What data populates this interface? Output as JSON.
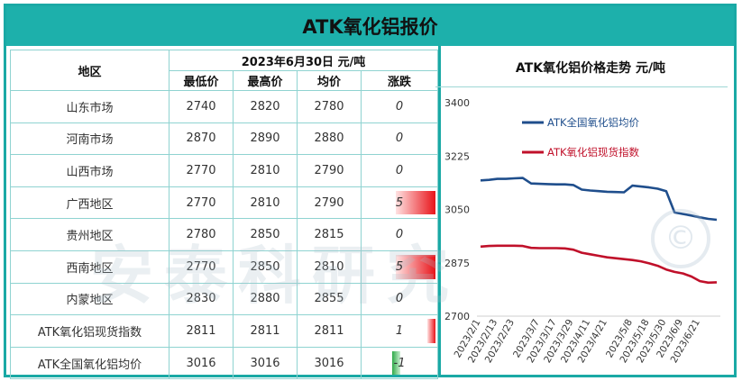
{
  "title": "ATK氧化铝报价",
  "table": {
    "region_header": "地区",
    "date_header": "2023年6月30日  元/吨",
    "columns": [
      "最低价",
      "最高价",
      "均价",
      "涨跌"
    ],
    "rows": [
      {
        "region": "山东市场",
        "low": "2740",
        "high": "2820",
        "avg": "2780",
        "change": "0",
        "change_value": 0
      },
      {
        "region": "河南市场",
        "low": "2870",
        "high": "2890",
        "avg": "2880",
        "change": "0",
        "change_value": 0
      },
      {
        "region": "山西市场",
        "low": "2770",
        "high": "2810",
        "avg": "2790",
        "change": "0",
        "change_value": 0
      },
      {
        "region": "广西地区",
        "low": "2770",
        "high": "2810",
        "avg": "2790",
        "change": "5",
        "change_value": 5
      },
      {
        "region": "贵州地区",
        "low": "2780",
        "high": "2850",
        "avg": "2815",
        "change": "0",
        "change_value": 0
      },
      {
        "region": "西南地区",
        "low": "2770",
        "high": "2850",
        "avg": "2810",
        "change": "5",
        "change_value": 5
      },
      {
        "region": "内蒙地区",
        "low": "2830",
        "high": "2880",
        "avg": "2855",
        "change": "0",
        "change_value": 0
      },
      {
        "region": "ATK氧化铝现货指数",
        "low": "2811",
        "high": "2811",
        "avg": "2811",
        "change": "1",
        "change_value": 1
      },
      {
        "region": "ATK全国氧化铝均价",
        "low": "3016",
        "high": "3016",
        "avg": "3016",
        "change": "-1",
        "change_value": -1
      }
    ],
    "up_color": "#e8141a",
    "down_color": "#2faa4a"
  },
  "chart_title": "ATK氧化铝价格走势  元/吨",
  "chart_data": {
    "type": "line",
    "y_ticks": [
      2700,
      2875,
      3050,
      3225,
      3400
    ],
    "ylim": [
      2700,
      3400
    ],
    "x_ticks": [
      "2023/2/1",
      "2023/2/13",
      "2023/2/23",
      "2023/3/7",
      "2023/3/17",
      "2023/3/29",
      "2023/4/11",
      "2023/4/21",
      "2023/5/8",
      "2023/5/18",
      "2023/5/30",
      "2023/6/9",
      "2023/6/21"
    ],
    "x": [
      "2023/2/1",
      "2023/2/6",
      "2023/2/13",
      "2023/2/17",
      "2023/2/23",
      "2023/2/27",
      "2023/3/1",
      "2023/3/7",
      "2023/3/13",
      "2023/3/17",
      "2023/3/23",
      "2023/3/29",
      "2023/4/4",
      "2023/4/11",
      "2023/4/17",
      "2023/4/21",
      "2023/4/27",
      "2023/5/4",
      "2023/5/8",
      "2023/5/12",
      "2023/5/18",
      "2023/5/24",
      "2023/5/30",
      "2023/6/5",
      "2023/6/9",
      "2023/6/15",
      "2023/6/21",
      "2023/6/26",
      "2023/6/30"
    ],
    "series": [
      {
        "name": "ATK全国氧化铝均价",
        "color": "#1f4e8c",
        "values": [
          3145,
          3147,
          3150,
          3150,
          3152,
          3153,
          3135,
          3134,
          3133,
          3132,
          3132,
          3130,
          3115,
          3112,
          3110,
          3108,
          3107,
          3106,
          3128,
          3125,
          3122,
          3118,
          3110,
          3040,
          3035,
          3030,
          3024,
          3019,
          3016
        ]
      },
      {
        "name": "ATK氧化铝现货指数",
        "color": "#c0102a",
        "values": [
          2928,
          2930,
          2931,
          2931,
          2931,
          2930,
          2924,
          2923,
          2923,
          2923,
          2922,
          2918,
          2908,
          2903,
          2898,
          2893,
          2890,
          2887,
          2884,
          2880,
          2873,
          2865,
          2853,
          2845,
          2840,
          2830,
          2815,
          2810,
          2811
        ]
      }
    ],
    "legend_position": "top-center",
    "grid": false
  },
  "watermark": {
    "text": "安泰科研究",
    "mark": "©"
  }
}
